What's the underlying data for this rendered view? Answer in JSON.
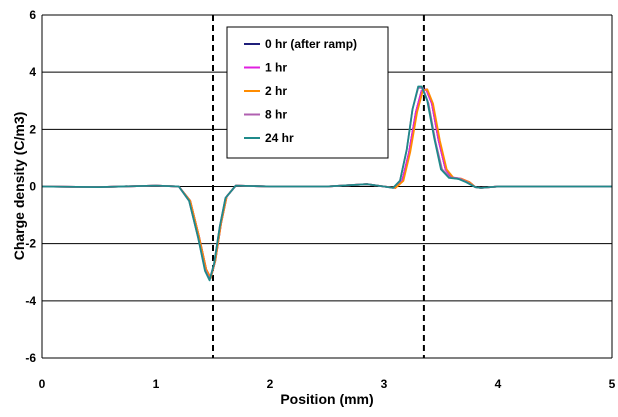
{
  "chart_data": {
    "type": "line",
    "title": "",
    "xlabel": "Position (mm)",
    "ylabel": "Charge density (C/m3)",
    "xlim": [
      0,
      5
    ],
    "ylim": [
      -6,
      6
    ],
    "x_ticks": [
      "0",
      "1",
      "2",
      "3",
      "4",
      "5"
    ],
    "y_ticks": [
      "6",
      "4",
      "2",
      "0",
      "-2",
      "-4",
      "-6"
    ],
    "grid": "horizontal",
    "legend_position": "top-center",
    "reference_lines_x": [
      1.5,
      3.35
    ],
    "series": [
      {
        "name": "0 hr (after ramp)",
        "color": "#1f1f7a",
        "points": [
          [
            0,
            0
          ],
          [
            0.5,
            -0.02
          ],
          [
            1.0,
            0.03
          ],
          [
            1.2,
            0.0
          ],
          [
            1.3,
            -0.5
          ],
          [
            1.38,
            -1.8
          ],
          [
            1.44,
            -2.9
          ],
          [
            1.48,
            -3.2
          ],
          [
            1.52,
            -2.6
          ],
          [
            1.57,
            -1.3
          ],
          [
            1.62,
            -0.35
          ],
          [
            1.7,
            0.03
          ],
          [
            2.0,
            0.0
          ],
          [
            2.5,
            0.0
          ],
          [
            2.85,
            0.08
          ],
          [
            3.0,
            0.0
          ],
          [
            3.1,
            -0.05
          ],
          [
            3.16,
            0.2
          ],
          [
            3.22,
            1.2
          ],
          [
            3.28,
            2.6
          ],
          [
            3.33,
            3.35
          ],
          [
            3.37,
            3.4
          ],
          [
            3.42,
            2.9
          ],
          [
            3.48,
            1.6
          ],
          [
            3.54,
            0.6
          ],
          [
            3.6,
            0.3
          ],
          [
            3.68,
            0.25
          ],
          [
            3.75,
            0.15
          ],
          [
            3.8,
            -0.02
          ],
          [
            3.85,
            -0.05
          ],
          [
            4.0,
            0.0
          ],
          [
            5.0,
            0.0
          ]
        ]
      },
      {
        "name": "1 hr",
        "color": "#e020e0",
        "points": [
          [
            0,
            0
          ],
          [
            0.5,
            -0.02
          ],
          [
            1.0,
            0.03
          ],
          [
            1.2,
            0.0
          ],
          [
            1.3,
            -0.5
          ],
          [
            1.38,
            -1.8
          ],
          [
            1.44,
            -2.9
          ],
          [
            1.48,
            -3.2
          ],
          [
            1.52,
            -2.6
          ],
          [
            1.57,
            -1.3
          ],
          [
            1.62,
            -0.35
          ],
          [
            1.7,
            0.03
          ],
          [
            2.0,
            0.0
          ],
          [
            2.5,
            0.0
          ],
          [
            2.85,
            0.08
          ],
          [
            3.0,
            0.0
          ],
          [
            3.1,
            -0.05
          ],
          [
            3.16,
            0.2
          ],
          [
            3.22,
            1.2
          ],
          [
            3.28,
            2.6
          ],
          [
            3.33,
            3.35
          ],
          [
            3.37,
            3.4
          ],
          [
            3.42,
            2.9
          ],
          [
            3.48,
            1.6
          ],
          [
            3.54,
            0.6
          ],
          [
            3.6,
            0.32
          ],
          [
            3.68,
            0.27
          ],
          [
            3.75,
            0.15
          ],
          [
            3.8,
            -0.02
          ],
          [
            3.85,
            -0.05
          ],
          [
            4.0,
            0.0
          ],
          [
            5.0,
            0.0
          ]
        ]
      },
      {
        "name": "2 hr",
        "color": "#ff8c00",
        "points": [
          [
            0,
            0
          ],
          [
            0.5,
            -0.02
          ],
          [
            1.0,
            0.03
          ],
          [
            1.2,
            0.0
          ],
          [
            1.3,
            -0.5
          ],
          [
            1.38,
            -1.8
          ],
          [
            1.44,
            -2.9
          ],
          [
            1.48,
            -3.2
          ],
          [
            1.52,
            -2.6
          ],
          [
            1.57,
            -1.3
          ],
          [
            1.62,
            -0.35
          ],
          [
            1.7,
            0.03
          ],
          [
            2.0,
            0.0
          ],
          [
            2.5,
            0.0
          ],
          [
            2.85,
            0.08
          ],
          [
            3.0,
            0.0
          ],
          [
            3.1,
            -0.05
          ],
          [
            3.17,
            0.2
          ],
          [
            3.23,
            1.2
          ],
          [
            3.29,
            2.6
          ],
          [
            3.34,
            3.35
          ],
          [
            3.38,
            3.4
          ],
          [
            3.43,
            2.9
          ],
          [
            3.49,
            1.6
          ],
          [
            3.55,
            0.6
          ],
          [
            3.61,
            0.3
          ],
          [
            3.68,
            0.27
          ],
          [
            3.75,
            0.15
          ],
          [
            3.8,
            -0.02
          ],
          [
            3.85,
            -0.05
          ],
          [
            4.0,
            0.0
          ],
          [
            5.0,
            0.0
          ]
        ]
      },
      {
        "name": "8 hr",
        "color": "#b060b0",
        "points": [
          [
            0,
            0
          ],
          [
            0.5,
            -0.02
          ],
          [
            1.0,
            0.03
          ],
          [
            1.2,
            0.0
          ],
          [
            1.29,
            -0.5
          ],
          [
            1.37,
            -1.8
          ],
          [
            1.43,
            -2.9
          ],
          [
            1.47,
            -3.25
          ],
          [
            1.51,
            -2.7
          ],
          [
            1.56,
            -1.4
          ],
          [
            1.61,
            -0.4
          ],
          [
            1.7,
            0.03
          ],
          [
            2.0,
            0.0
          ],
          [
            2.5,
            0.0
          ],
          [
            2.85,
            0.08
          ],
          [
            3.0,
            0.0
          ],
          [
            3.08,
            -0.05
          ],
          [
            3.14,
            0.2
          ],
          [
            3.2,
            1.3
          ],
          [
            3.25,
            2.7
          ],
          [
            3.3,
            3.45
          ],
          [
            3.34,
            3.45
          ],
          [
            3.39,
            2.9
          ],
          [
            3.45,
            1.6
          ],
          [
            3.51,
            0.6
          ],
          [
            3.58,
            0.32
          ],
          [
            3.66,
            0.28
          ],
          [
            3.73,
            0.15
          ],
          [
            3.8,
            -0.02
          ],
          [
            3.85,
            -0.05
          ],
          [
            4.0,
            0.0
          ],
          [
            5.0,
            0.0
          ]
        ]
      },
      {
        "name": "24 hr",
        "color": "#1f8a8a",
        "points": [
          [
            0,
            0
          ],
          [
            0.5,
            -0.02
          ],
          [
            1.0,
            0.03
          ],
          [
            1.2,
            0.0
          ],
          [
            1.29,
            -0.5
          ],
          [
            1.37,
            -1.8
          ],
          [
            1.43,
            -2.95
          ],
          [
            1.47,
            -3.28
          ],
          [
            1.51,
            -2.7
          ],
          [
            1.56,
            -1.4
          ],
          [
            1.61,
            -0.4
          ],
          [
            1.7,
            0.03
          ],
          [
            2.0,
            0.0
          ],
          [
            2.5,
            0.0
          ],
          [
            2.85,
            0.08
          ],
          [
            3.0,
            0.0
          ],
          [
            3.08,
            -0.05
          ],
          [
            3.14,
            0.2
          ],
          [
            3.2,
            1.3
          ],
          [
            3.25,
            2.7
          ],
          [
            3.3,
            3.5
          ],
          [
            3.33,
            3.5
          ],
          [
            3.38,
            3.0
          ],
          [
            3.44,
            1.7
          ],
          [
            3.5,
            0.6
          ],
          [
            3.57,
            0.3
          ],
          [
            3.65,
            0.27
          ],
          [
            3.72,
            0.15
          ],
          [
            3.8,
            -0.02
          ],
          [
            3.85,
            -0.05
          ],
          [
            4.0,
            0.0
          ],
          [
            5.0,
            0.0
          ]
        ]
      }
    ]
  }
}
